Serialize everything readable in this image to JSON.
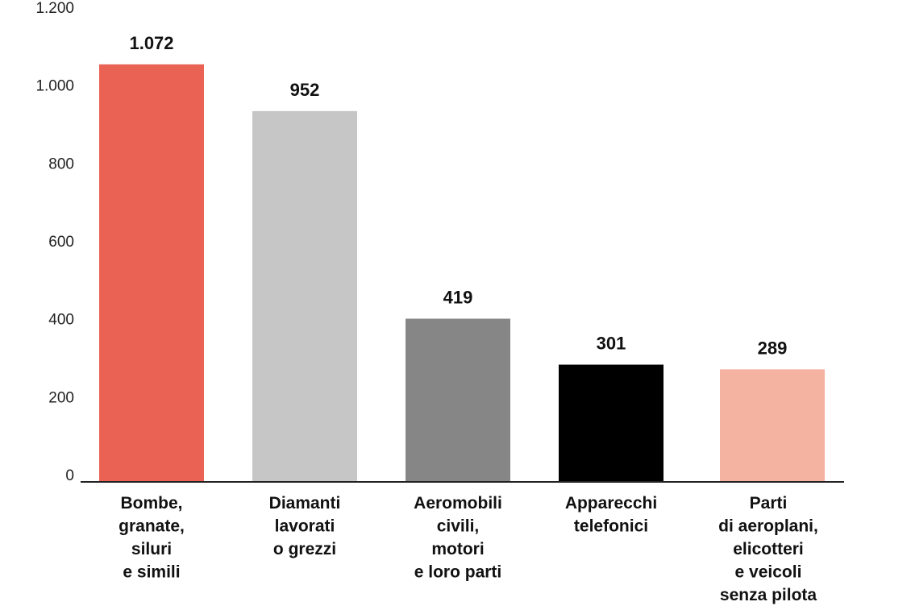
{
  "chart_data": {
    "type": "bar",
    "title": "",
    "xlabel": "",
    "ylabel": "",
    "ylim": [
      0,
      1200
    ],
    "yticks": [
      0,
      200,
      400,
      600,
      800,
      1000,
      1200
    ],
    "ytick_labels": [
      "0",
      "200",
      "400",
      "600",
      "800",
      "1.000",
      "1.200"
    ],
    "grid": false,
    "legend": "none",
    "categories": [
      "Bombe, granate, siluri e simili",
      "Diamanti lavorati o grezzi",
      "Aeromobili civili, motori e loro parti",
      "Apparecchi telefonici",
      "Parti di aeroplani, elicotteri e veicoli senza pilota"
    ],
    "category_lines": [
      [
        "Bombe,",
        "granate,",
        "siluri",
        "e simili"
      ],
      [
        "Diamanti",
        "lavorati",
        "o grezzi"
      ],
      [
        "Aeromobili",
        "civili,",
        "motori",
        "e loro parti"
      ],
      [
        "Apparecchi",
        "telefonici"
      ],
      [
        "Parti",
        "di aeroplani,",
        "elicotteri",
        "e veicoli",
        "senza pilota"
      ]
    ],
    "values": [
      1072,
      952,
      419,
      301,
      289
    ],
    "value_labels": [
      "1.072",
      "952",
      "419",
      "301",
      "289"
    ],
    "colors": [
      "#e96254",
      "#c6c6c6",
      "#868686",
      "#000000",
      "#f4b3a1"
    ]
  }
}
